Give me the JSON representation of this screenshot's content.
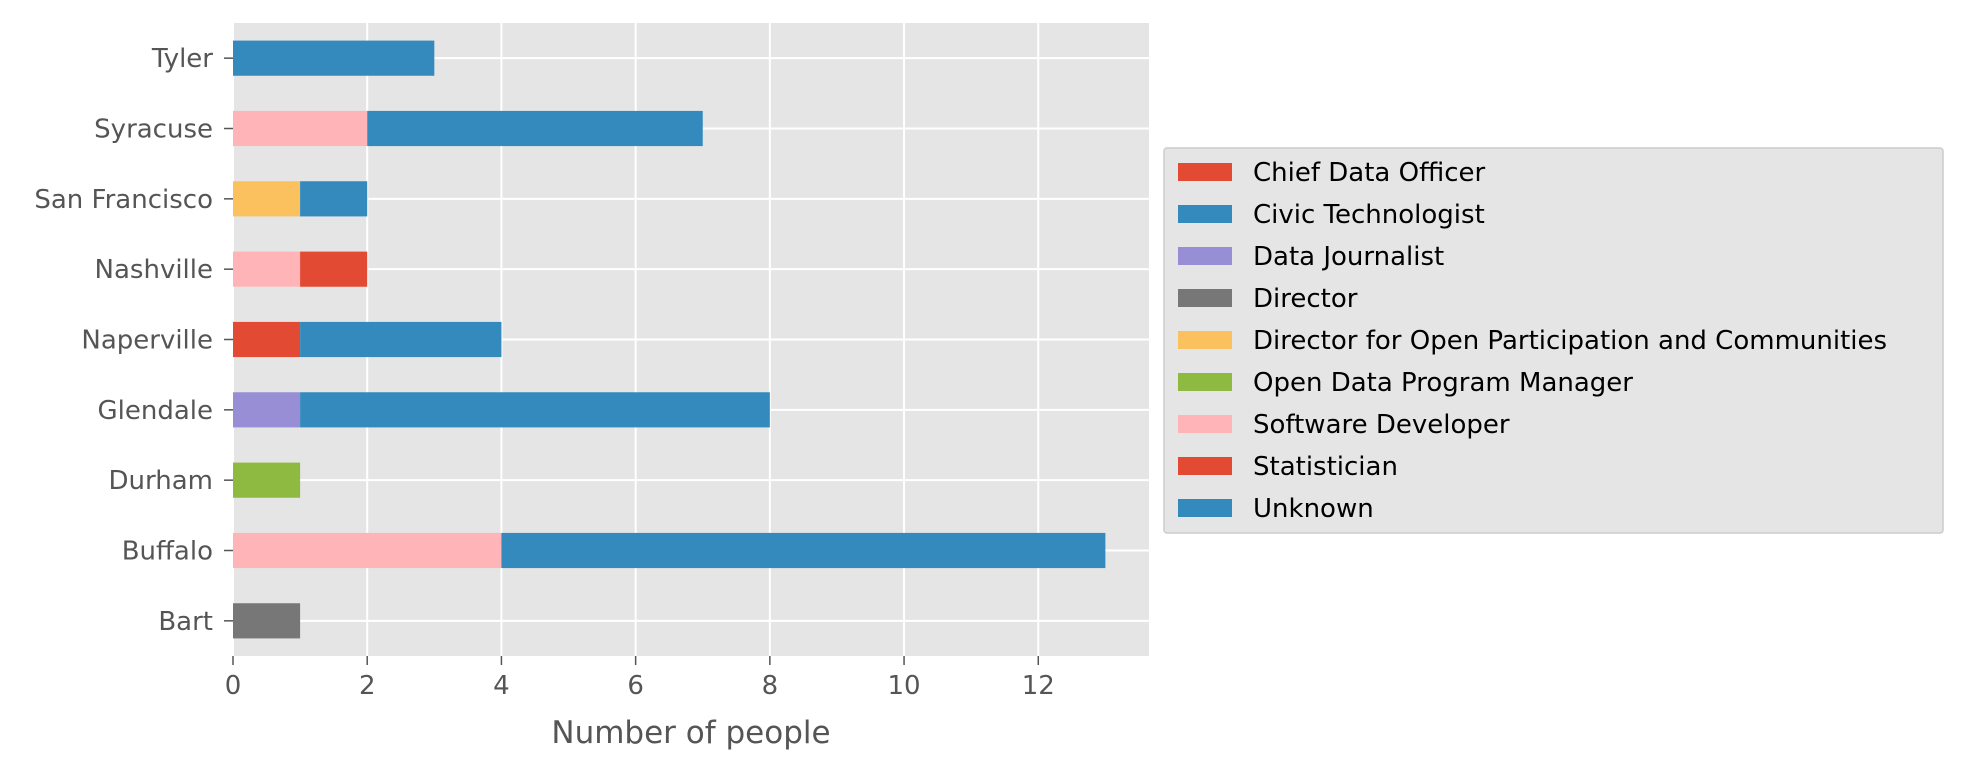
{
  "chart_data": {
    "type": "bar",
    "orientation": "horizontal",
    "stacked": true,
    "title": "",
    "xlabel": "Number of people",
    "ylabel": "",
    "xlim": [
      0,
      13.65
    ],
    "xticks": [
      0,
      2,
      4,
      6,
      8,
      10,
      12
    ],
    "grid": true,
    "legend_position": "right",
    "categories": [
      "Bart",
      "Buffalo",
      "Durham",
      "Glendale",
      "Naperville",
      "Nashville",
      "San Francisco",
      "Syracuse",
      "Tyler"
    ],
    "series": [
      {
        "name": "Chief Data Officer",
        "color": "#E24A33",
        "values": [
          0,
          0,
          0,
          0,
          1,
          0,
          0,
          0,
          0
        ]
      },
      {
        "name": "Civic Technologist",
        "color": "#348ABD",
        "values": [
          0,
          0,
          0,
          0,
          0,
          0,
          0,
          0,
          0
        ]
      },
      {
        "name": "Data Journalist",
        "color": "#988ED5",
        "values": [
          0,
          0,
          0,
          1,
          0,
          0,
          0,
          0,
          0
        ]
      },
      {
        "name": "Director",
        "color": "#777777",
        "values": [
          1,
          0,
          0,
          0,
          0,
          0,
          0,
          0,
          0
        ]
      },
      {
        "name": "Director for Open Participation and Communities",
        "color": "#FBC15E",
        "values": [
          0,
          0,
          0,
          0,
          0,
          0,
          1,
          0,
          0
        ]
      },
      {
        "name": "Open Data Program Manager",
        "color": "#8EBA42",
        "values": [
          0,
          0,
          1,
          0,
          0,
          0,
          0,
          0,
          0
        ]
      },
      {
        "name": "Software Developer",
        "color": "#FFB5B8",
        "values": [
          0,
          4,
          0,
          0,
          0,
          1,
          0,
          2,
          0
        ]
      },
      {
        "name": "Statistician",
        "color": "#E24A33",
        "values": [
          0,
          0,
          0,
          0,
          0,
          1,
          0,
          0,
          0
        ]
      },
      {
        "name": "Unknown",
        "color": "#348ABD",
        "values": [
          0,
          9,
          0,
          7,
          3,
          0,
          1,
          5,
          3
        ]
      }
    ]
  }
}
